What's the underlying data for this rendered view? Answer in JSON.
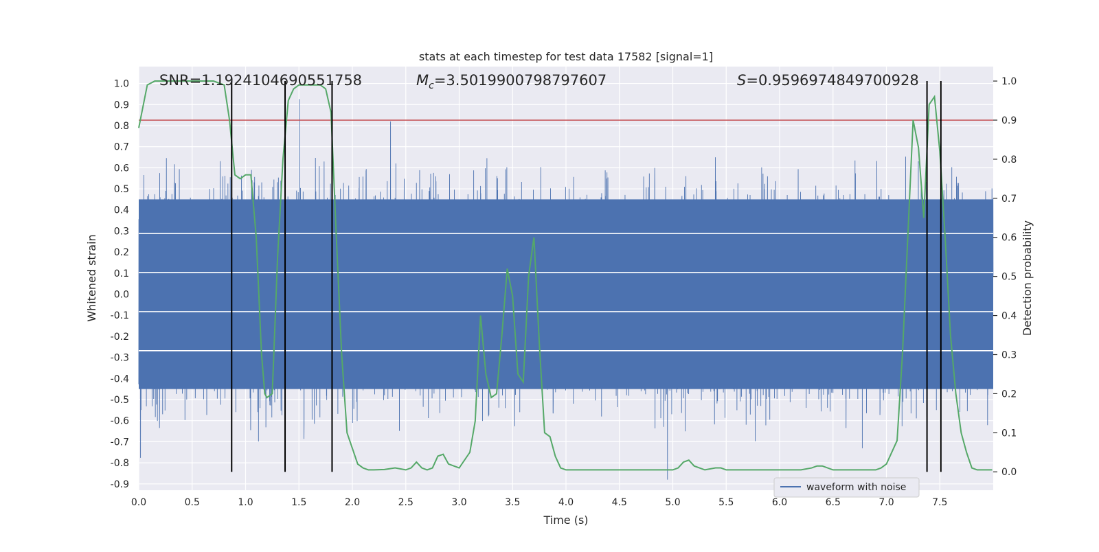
{
  "chart_data": {
    "type": "line",
    "title": "stats at each timestep for test data 17582 [signal=1]",
    "xlabel": "Time (s)",
    "ylabel": "Whitened strain",
    "y2label": "Detection probability",
    "xlim": [
      0.0,
      8.0
    ],
    "ylim": [
      -0.93,
      1.08
    ],
    "y2lim": [
      -0.047,
      1.037
    ],
    "x_ticks": [
      "0.0",
      "0.5",
      "1.0",
      "1.5",
      "2.0",
      "2.5",
      "3.0",
      "3.5",
      "4.0",
      "4.5",
      "5.0",
      "5.5",
      "6.0",
      "6.5",
      "7.0",
      "7.5"
    ],
    "y_ticks": [
      "1.0",
      "0.9",
      "0.8",
      "0.7",
      "0.6",
      "0.5",
      "0.4",
      "0.3",
      "0.2",
      "0.1",
      "0.0",
      "-0.1",
      "-0.2",
      "-0.3",
      "-0.4",
      "-0.5",
      "-0.6",
      "-0.7",
      "-0.8",
      "-0.9"
    ],
    "y2_ticks": [
      "1.0",
      "0.9",
      "0.8",
      "0.7",
      "0.6",
      "0.5",
      "0.4",
      "0.3",
      "0.2",
      "0.1",
      "0.0"
    ],
    "grid": true,
    "background": "#eaeaf2",
    "annotations": {
      "snr": "SNR=1.1924104690551758",
      "mc_symbol": "M",
      "mc_sub": "c",
      "mc_value": "=3.5019900798797607",
      "s_symbol": "S",
      "s_value": "=0.9596974849700928"
    },
    "legend": {
      "label": "waveform with noise",
      "placement": "lower-right"
    },
    "waveform": {
      "name": "waveform with noise",
      "color": "#4c72b0",
      "sample_count": 8192,
      "body_range": [
        -0.45,
        0.45
      ],
      "typical_peak": 0.6,
      "max_value": 1.0,
      "min_value": -0.88,
      "seed": 17582
    },
    "detection_probability": {
      "name": "detection probability",
      "color": "#55a868",
      "x": [
        0.0,
        0.08,
        0.15,
        0.3,
        0.5,
        0.7,
        0.8,
        0.85,
        0.9,
        0.95,
        1.0,
        1.05,
        1.1,
        1.15,
        1.18,
        1.2,
        1.25,
        1.3,
        1.35,
        1.4,
        1.45,
        1.5,
        1.6,
        1.7,
        1.75,
        1.8,
        1.85,
        1.9,
        1.95,
        2.0,
        2.05,
        2.1,
        2.15,
        2.2,
        2.3,
        2.4,
        2.5,
        2.55,
        2.6,
        2.65,
        2.7,
        2.75,
        2.8,
        2.85,
        2.9,
        2.95,
        3.0,
        3.1,
        3.15,
        3.2,
        3.25,
        3.3,
        3.35,
        3.4,
        3.45,
        3.5,
        3.55,
        3.6,
        3.65,
        3.7,
        3.75,
        3.8,
        3.85,
        3.9,
        3.95,
        4.0,
        4.05,
        4.1,
        4.15,
        4.2,
        4.3,
        4.5,
        4.7,
        4.9,
        5.0,
        5.05,
        5.1,
        5.15,
        5.2,
        5.25,
        5.3,
        5.4,
        5.45,
        5.5,
        5.6,
        5.7,
        5.8,
        6.0,
        6.2,
        6.3,
        6.35,
        6.4,
        6.5,
        6.7,
        6.9,
        6.95,
        7.0,
        7.05,
        7.1,
        7.15,
        7.2,
        7.25,
        7.3,
        7.35,
        7.4,
        7.45,
        7.5,
        7.55,
        7.6,
        7.65,
        7.7,
        7.75,
        7.8,
        7.85,
        7.9,
        7.95,
        7.99
      ],
      "y": [
        0.88,
        0.99,
        1.0,
        1.0,
        1.0,
        1.0,
        0.99,
        0.9,
        0.76,
        0.75,
        0.76,
        0.76,
        0.6,
        0.3,
        0.2,
        0.19,
        0.2,
        0.55,
        0.8,
        0.95,
        0.98,
        0.99,
        0.99,
        0.99,
        0.98,
        0.92,
        0.6,
        0.3,
        0.1,
        0.06,
        0.02,
        0.01,
        0.005,
        0.005,
        0.006,
        0.01,
        0.005,
        0.01,
        0.025,
        0.01,
        0.005,
        0.01,
        0.04,
        0.045,
        0.02,
        0.015,
        0.01,
        0.05,
        0.13,
        0.4,
        0.25,
        0.19,
        0.2,
        0.35,
        0.52,
        0.45,
        0.25,
        0.23,
        0.5,
        0.6,
        0.33,
        0.1,
        0.09,
        0.04,
        0.01,
        0.005,
        0.005,
        0.005,
        0.005,
        0.005,
        0.005,
        0.005,
        0.005,
        0.005,
        0.005,
        0.01,
        0.025,
        0.03,
        0.015,
        0.01,
        0.005,
        0.01,
        0.01,
        0.005,
        0.005,
        0.005,
        0.005,
        0.005,
        0.005,
        0.01,
        0.015,
        0.015,
        0.005,
        0.005,
        0.005,
        0.01,
        0.02,
        0.05,
        0.08,
        0.3,
        0.6,
        0.9,
        0.83,
        0.65,
        0.94,
        0.96,
        0.82,
        0.6,
        0.35,
        0.2,
        0.1,
        0.05,
        0.01,
        0.005,
        0.005,
        0.005,
        0.005
      ]
    },
    "threshold": {
      "value": 0.9,
      "axis": "y2",
      "color": "#c44e52"
    },
    "vertical_lines": {
      "x": [
        0.87,
        1.37,
        1.81,
        7.38,
        7.51
      ],
      "color": "#000000"
    },
    "horizontal_white_lines_y2": [
      0.61,
      0.51,
      0.41,
      0.31
    ]
  }
}
